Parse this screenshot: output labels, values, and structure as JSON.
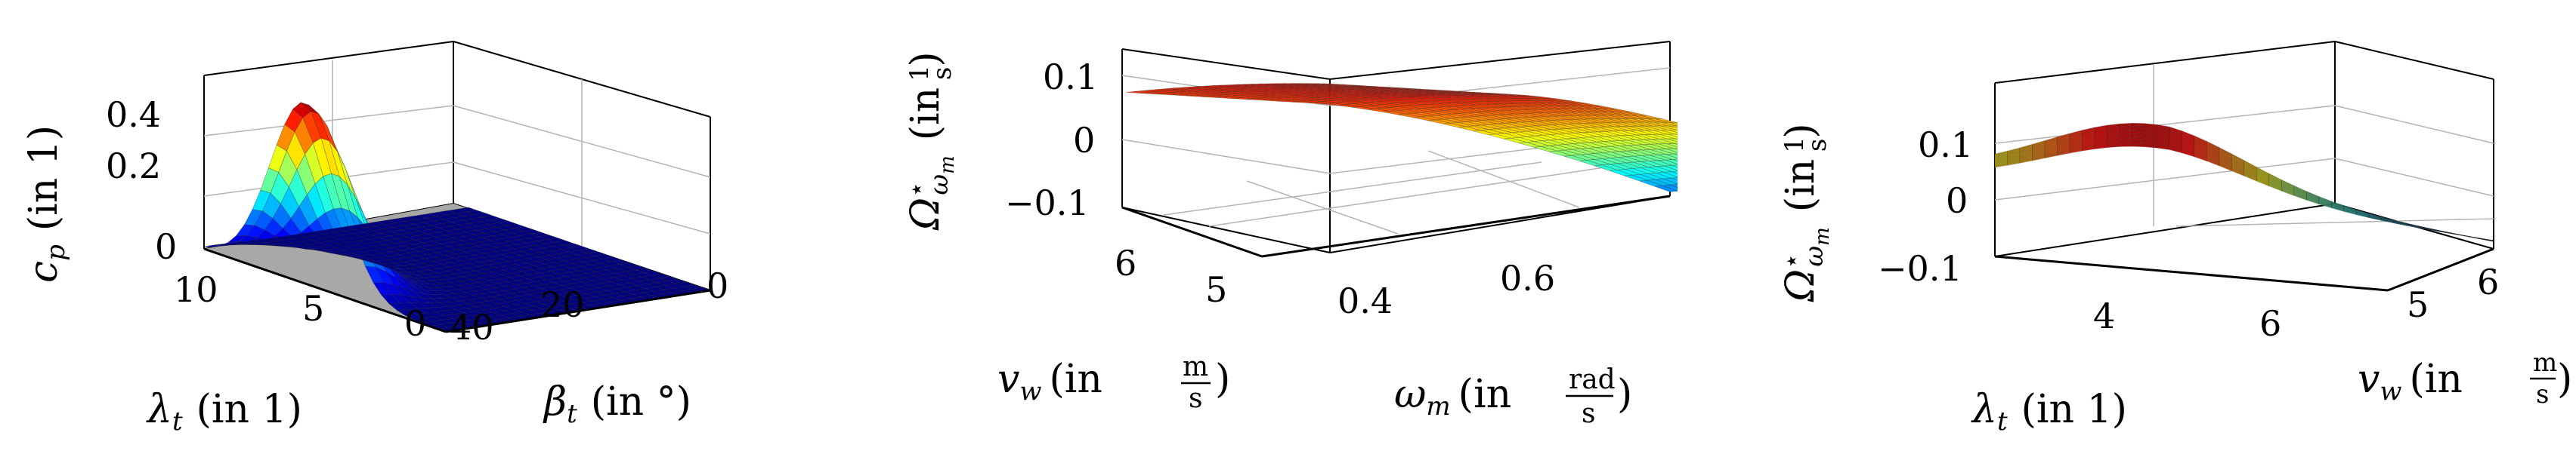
{
  "colors": {
    "axis": "#000000",
    "grid": "#b4b4b4",
    "floor": "#a8a8a8",
    "colormap": "jet"
  },
  "chart_data": [
    {
      "type": "surface3d",
      "zlabel": {
        "sym": "c",
        "sub": "p",
        "unit": "(in 1)"
      },
      "xlabel": {
        "sym": "λ",
        "sub": "t",
        "unit": "(in 1)"
      },
      "ylabel": {
        "sym": "β",
        "sub": "t",
        "unit": "(in °)"
      },
      "zticks": [
        "0.4",
        "0.2",
        "0"
      ],
      "xticks": [
        "10",
        "5",
        "0"
      ],
      "yticks": [
        "40",
        "20",
        "0"
      ],
      "xlim": [
        0,
        12
      ],
      "ylim": [
        0,
        45
      ],
      "zlim": [
        0,
        0.5
      ],
      "peak": {
        "lambda": 7.0,
        "beta": 0,
        "cp": 0.48
      }
    },
    {
      "type": "surface3d",
      "zlabel": {
        "sym": "Ω",
        "sup": "⋆",
        "sub": "ω",
        "subsub": "m",
        "unit": "(in 1/s)"
      },
      "xlabel": {
        "sym": "v",
        "sub": "w",
        "unit_pre": "(in",
        "frac_num": "m",
        "frac_den": "s",
        "unit_post": ")"
      },
      "ylabel": {
        "sym": "ω",
        "sub": "m",
        "unit_pre": "(in",
        "frac_num": "rad",
        "frac_den": "s",
        "unit_post": ")"
      },
      "zticks": [
        "0.1",
        "0",
        "−0.1"
      ],
      "xticks": [
        "6",
        "5"
      ],
      "yticks": [
        "0.4",
        "0.6"
      ],
      "zlim": [
        -0.13,
        0.15
      ]
    },
    {
      "type": "surface3d",
      "zlabel": {
        "sym": "Ω",
        "sup": "⋆",
        "sub": "ω",
        "subsub": "m",
        "unit": "(in 1/s)"
      },
      "xlabel": {
        "sym": "λ",
        "sub": "t",
        "unit": "(in 1)"
      },
      "ylabel": {
        "sym": "v",
        "sub": "w",
        "unit_pre": "(in",
        "frac_num": "m",
        "frac_den": "s",
        "unit_post": ")"
      },
      "zticks": [
        "0.1",
        "0",
        "−0.1"
      ],
      "xticks": [
        "4",
        "6"
      ],
      "yticks": [
        "5",
        "6"
      ],
      "zlim": [
        -0.13,
        0.15
      ]
    }
  ]
}
